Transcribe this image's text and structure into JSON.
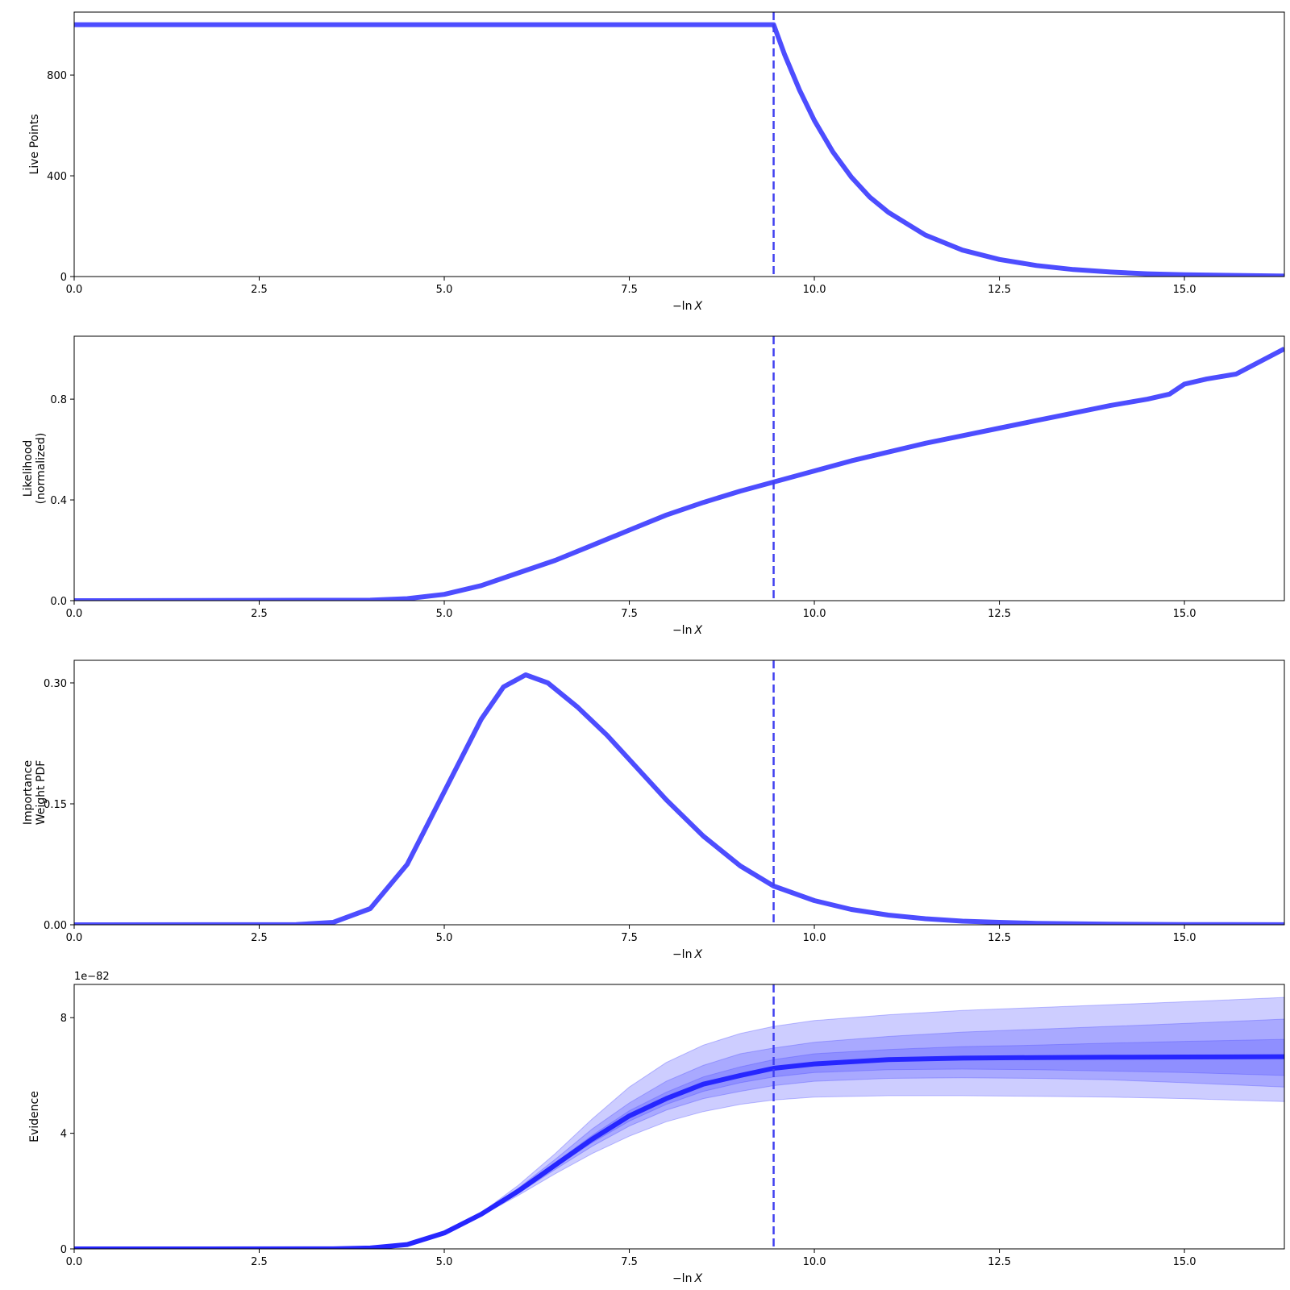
{
  "chart_data": [
    {
      "type": "line",
      "ylabel_lines": [
        "Live Points"
      ],
      "xlabel_pre": "−ln",
      "xlabel_var": "X",
      "xlim": [
        0,
        16.35
      ],
      "ylim": [
        0,
        1050
      ],
      "x_ticks": [
        "0.0",
        "2.5",
        "5.0",
        "7.5",
        "10.0",
        "12.5",
        "15.0"
      ],
      "y_ticks": [
        "0",
        "400",
        "800"
      ],
      "vline_x": 9.45,
      "line_color": "#4d4dff",
      "series": [
        {
          "x": [
            0,
            9.45,
            9.6,
            9.8,
            10.0,
            10.25,
            10.5,
            10.75,
            11.0,
            11.5,
            12.0,
            12.5,
            13.0,
            13.5,
            14.0,
            14.5,
            15.0,
            15.5,
            16.35
          ],
          "y": [
            1000,
            1000,
            880,
            740,
            620,
            495,
            395,
            315,
            255,
            165,
            105,
            68,
            44,
            28,
            18,
            11,
            7,
            5,
            2
          ]
        }
      ]
    },
    {
      "type": "line",
      "ylabel_lines": [
        "Likelihood",
        "(normalized)"
      ],
      "xlabel_pre": "−ln",
      "xlabel_var": "X",
      "xlim": [
        0,
        16.35
      ],
      "ylim": [
        0,
        1.05
      ],
      "x_ticks": [
        "0.0",
        "2.5",
        "5.0",
        "7.5",
        "10.0",
        "12.5",
        "15.0"
      ],
      "y_ticks": [
        "0.0",
        "0.4",
        "0.8"
      ],
      "vline_x": 9.45,
      "line_color": "#4d4dff",
      "series": [
        {
          "x": [
            0,
            4.0,
            4.5,
            5.0,
            5.5,
            6.0,
            6.5,
            7.0,
            7.5,
            8.0,
            8.5,
            9.0,
            9.5,
            10.0,
            10.5,
            11.0,
            11.5,
            12.0,
            12.5,
            13.0,
            13.5,
            14.0,
            14.5,
            14.8,
            15.0,
            15.3,
            15.7,
            16.35
          ],
          "y": [
            0.0,
            0.002,
            0.008,
            0.025,
            0.06,
            0.11,
            0.16,
            0.22,
            0.28,
            0.34,
            0.39,
            0.435,
            0.475,
            0.515,
            0.555,
            0.59,
            0.625,
            0.655,
            0.685,
            0.715,
            0.745,
            0.775,
            0.8,
            0.82,
            0.86,
            0.88,
            0.9,
            1.0
          ]
        }
      ]
    },
    {
      "type": "line",
      "ylabel_lines": [
        "Importance",
        "Weight PDF"
      ],
      "xlabel_pre": "−ln",
      "xlabel_var": "X",
      "xlim": [
        0,
        16.35
      ],
      "ylim": [
        0,
        0.328
      ],
      "x_ticks": [
        "0.0",
        "2.5",
        "5.0",
        "7.5",
        "10.0",
        "12.5",
        "15.0"
      ],
      "y_ticks": [
        "0.00",
        "0.15",
        "0.30"
      ],
      "vline_x": 9.45,
      "line_color": "#4d4dff",
      "series": [
        {
          "x": [
            0,
            3.0,
            3.5,
            4.0,
            4.5,
            5.0,
            5.5,
            5.8,
            6.1,
            6.4,
            6.8,
            7.2,
            7.6,
            8.0,
            8.5,
            9.0,
            9.45,
            10.0,
            10.5,
            11.0,
            11.5,
            12.0,
            12.5,
            13.0,
            14.0,
            15.0,
            16.35
          ],
          "y": [
            0,
            0.0003,
            0.003,
            0.02,
            0.075,
            0.165,
            0.255,
            0.295,
            0.31,
            0.3,
            0.27,
            0.235,
            0.195,
            0.155,
            0.11,
            0.073,
            0.048,
            0.03,
            0.019,
            0.012,
            0.0075,
            0.0045,
            0.003,
            0.0018,
            0.0007,
            0.0003,
            0.0001
          ]
        }
      ]
    },
    {
      "type": "area",
      "ylabel_lines": [
        "Evidence"
      ],
      "offset_text": "1e−82",
      "xlabel_pre": "−ln",
      "xlabel_var": "X",
      "xlim": [
        0,
        16.35
      ],
      "ylim": [
        0,
        9.15
      ],
      "x_ticks": [
        "0.0",
        "2.5",
        "5.0",
        "7.5",
        "10.0",
        "12.5",
        "15.0"
      ],
      "y_ticks": [
        "0",
        "4",
        "8"
      ],
      "vline_x": 9.45,
      "line_color": "#2626ff",
      "band_color": "#4d4dff",
      "x": [
        0,
        3.5,
        4.0,
        4.5,
        5.0,
        5.5,
        6.0,
        6.5,
        7.0,
        7.5,
        8.0,
        8.5,
        9.0,
        9.45,
        10.0,
        11.0,
        12.0,
        13.0,
        14.0,
        15.0,
        16.35
      ],
      "series": [
        {
          "name": "",
          "values": [
            0,
            0.002,
            0.03,
            0.15,
            0.55,
            1.2,
            2.0,
            2.9,
            3.8,
            4.6,
            5.2,
            5.7,
            6.0,
            6.25,
            6.4,
            6.55,
            6.6,
            6.62,
            6.63,
            6.64,
            6.65
          ]
        }
      ],
      "bands": [
        {
          "lower": [
            0,
            0.002,
            0.028,
            0.14,
            0.52,
            1.15,
            1.85,
            2.6,
            3.3,
            3.9,
            4.4,
            4.75,
            5.0,
            5.15,
            5.25,
            5.3,
            5.3,
            5.28,
            5.25,
            5.2,
            5.1
          ],
          "upper": [
            0,
            0.002,
            0.032,
            0.16,
            0.58,
            1.25,
            2.2,
            3.3,
            4.5,
            5.6,
            6.45,
            7.05,
            7.45,
            7.7,
            7.9,
            8.1,
            8.25,
            8.35,
            8.45,
            8.55,
            8.7
          ]
        },
        {
          "lower": [
            0,
            0.002,
            0.029,
            0.145,
            0.535,
            1.17,
            1.92,
            2.75,
            3.55,
            4.25,
            4.8,
            5.2,
            5.45,
            5.65,
            5.8,
            5.9,
            5.92,
            5.9,
            5.85,
            5.75,
            5.6
          ],
          "upper": [
            0,
            0.002,
            0.031,
            0.155,
            0.565,
            1.23,
            2.1,
            3.1,
            4.15,
            5.05,
            5.8,
            6.35,
            6.75,
            6.95,
            7.15,
            7.35,
            7.5,
            7.6,
            7.7,
            7.8,
            7.95
          ]
        },
        {
          "lower": [
            0,
            0.002,
            0.03,
            0.148,
            0.545,
            1.185,
            1.96,
            2.83,
            3.68,
            4.42,
            5.0,
            5.45,
            5.75,
            5.95,
            6.1,
            6.2,
            6.22,
            6.2,
            6.15,
            6.1,
            6.0
          ],
          "upper": [
            0,
            0.002,
            0.03,
            0.152,
            0.555,
            1.215,
            2.05,
            2.98,
            3.93,
            4.78,
            5.42,
            5.95,
            6.3,
            6.55,
            6.75,
            6.9,
            7.0,
            7.05,
            7.12,
            7.18,
            7.25
          ]
        }
      ]
    }
  ]
}
